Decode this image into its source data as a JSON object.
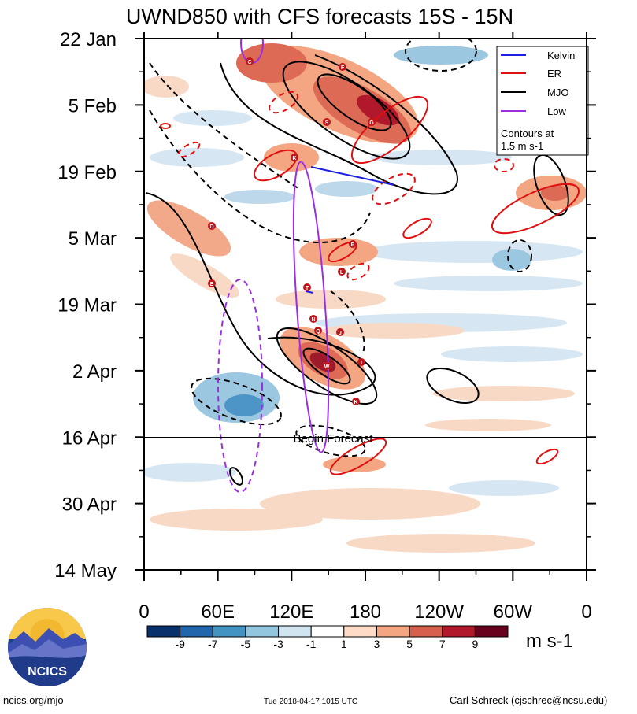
{
  "chart_data": {
    "type": "heatmap",
    "title": "UWND850 with CFS forecasts  15S - 15N",
    "x_tick_labels": [
      "0",
      "60E",
      "120E",
      "180",
      "120W",
      "60W",
      "0"
    ],
    "y_tick_labels": [
      "22 Jan",
      "5 Feb",
      "19 Feb",
      "5 Mar",
      "19 Mar",
      "2 Apr",
      "16 Apr",
      "30 Apr",
      "14 May"
    ],
    "forecast_label": "Begin Forecast",
    "forecast_start": "16 Apr",
    "legend": {
      "entries": [
        {
          "label": "Kelvin",
          "color": "#1f1fe0"
        },
        {
          "label": "ER",
          "color": "#e01010"
        },
        {
          "label": "MJO",
          "color": "#000000"
        },
        {
          "label": "Low",
          "color": "#9a2ee0"
        }
      ],
      "note": "Contours at\n1.5 m s-1"
    },
    "colorbar": {
      "labels": [
        "-9",
        "-7",
        "-5",
        "-3",
        "-1",
        "1",
        "3",
        "5",
        "7",
        "9"
      ],
      "colors": [
        "#08306b",
        "#2166ac",
        "#4393c3",
        "#92c5de",
        "#d1e5f0",
        "#ffffff",
        "#fddbc7",
        "#f4a582",
        "#d6604d",
        "#b2182b",
        "#67001f"
      ],
      "units": "m s-1"
    },
    "storm_markers": [
      "C",
      "F",
      "G",
      "S",
      "K",
      "D",
      "E",
      "P",
      "L",
      "T",
      "N",
      "Q",
      "J",
      "I",
      "W",
      "K"
    ]
  },
  "footer": {
    "left": "ncics.org/mjo",
    "timestamp": "Tue 2018-04-17 1015 UTC",
    "credit": "Carl Schreck (cjschrec@ncsu.edu)"
  },
  "logo": {
    "text": "NCICS"
  }
}
